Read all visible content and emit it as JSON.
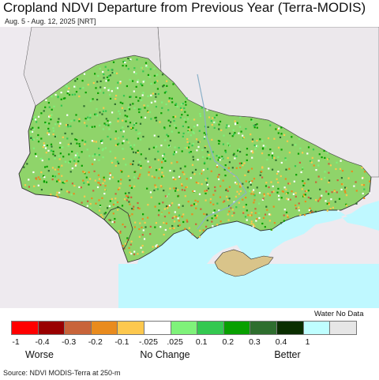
{
  "header": {
    "title": "Cropland NDVI Departure from Previous Year (Terra-MODIS)",
    "subtitle": "Aug. 5 - Aug. 12, 2025 [NRT]"
  },
  "map": {
    "sea_color": "#bff8ff",
    "land_color": "#eeeaef",
    "border_color": "#333333"
  },
  "legend": {
    "water_nodata_label": "Water No Data",
    "swatches": [
      {
        "color": "#ff0000"
      },
      {
        "color": "#990000"
      },
      {
        "color": "#c8643a"
      },
      {
        "color": "#e98b1e"
      },
      {
        "color": "#fdc84e"
      },
      {
        "color": "#ffffff"
      },
      {
        "color": "#7ff27a"
      },
      {
        "color": "#34c850"
      },
      {
        "color": "#08a000"
      },
      {
        "color": "#2e6e2e"
      },
      {
        "color": "#0a2e00"
      },
      {
        "color": "#bffeff"
      },
      {
        "color": "#e6e6e6"
      }
    ],
    "ticks": [
      "-1",
      "-0.4",
      "-0.3",
      "-0.2",
      "-0.1",
      "-.025",
      ".025",
      "0.1",
      "0.2",
      "0.3",
      "0.4",
      "1"
    ],
    "categories": {
      "worse": "Worse",
      "no_change": "No Change",
      "better": "Better"
    }
  },
  "footer": {
    "source": "Source: NDVI MODIS-Terra at 250-m"
  }
}
